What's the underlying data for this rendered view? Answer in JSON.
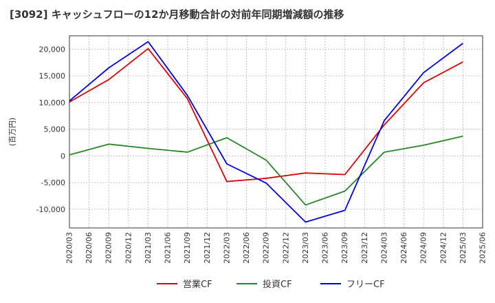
{
  "chart_data": {
    "type": "line",
    "title": "[3092]  キャッシュフローの12か月移動合計の対前年同期増減額の推移",
    "ylabel": "(百万円)",
    "xlabel": "",
    "ylim": [
      -13500,
      22500
    ],
    "yticks": [
      20000,
      15000,
      10000,
      5000,
      0,
      -5000,
      -10000
    ],
    "ytick_labels": [
      "20,000",
      "15,000",
      "10,000",
      "5,000",
      "0",
      "-5,000",
      "-10,000"
    ],
    "x_ticks": [
      "2020/03",
      "2020/06",
      "2020/09",
      "2020/12",
      "2021/03",
      "2021/06",
      "2021/09",
      "2021/12",
      "2022/03",
      "2022/06",
      "2022/09",
      "2022/12",
      "2023/03",
      "2023/06",
      "2023/09",
      "2023/12",
      "2024/03",
      "2024/06",
      "2024/09",
      "2024/12",
      "2025/03",
      "2025/06"
    ],
    "grid": true,
    "legend_position": "bottom",
    "series": [
      {
        "name": "営業CF",
        "color": "#dd0000",
        "x": [
          "2020/03",
          "2020/09",
          "2021/03",
          "2021/09",
          "2022/03",
          "2022/09",
          "2023/03",
          "2023/09",
          "2024/03",
          "2024/09",
          "2025/03"
        ],
        "values": [
          10100,
          14300,
          20100,
          10700,
          -4800,
          -4200,
          -3200,
          -3500,
          5800,
          13700,
          17600
        ]
      },
      {
        "name": "投資CF",
        "color": "#228822",
        "x": [
          "2020/03",
          "2020/09",
          "2021/03",
          "2021/09",
          "2022/03",
          "2022/09",
          "2023/03",
          "2023/09",
          "2024/03",
          "2024/09",
          "2025/03"
        ],
        "values": [
          200,
          2200,
          1400,
          700,
          3400,
          -800,
          -9200,
          -6600,
          700,
          2000,
          3700
        ]
      },
      {
        "name": "フリーCF",
        "color": "#0000dd",
        "x": [
          "2020/03",
          "2020/09",
          "2021/03",
          "2021/09",
          "2022/03",
          "2022/09",
          "2023/03",
          "2023/09",
          "2024/03",
          "2024/09",
          "2025/03"
        ],
        "values": [
          10300,
          16500,
          21400,
          11300,
          -1500,
          -5100,
          -12400,
          -10200,
          6600,
          15600,
          21100
        ]
      }
    ]
  }
}
